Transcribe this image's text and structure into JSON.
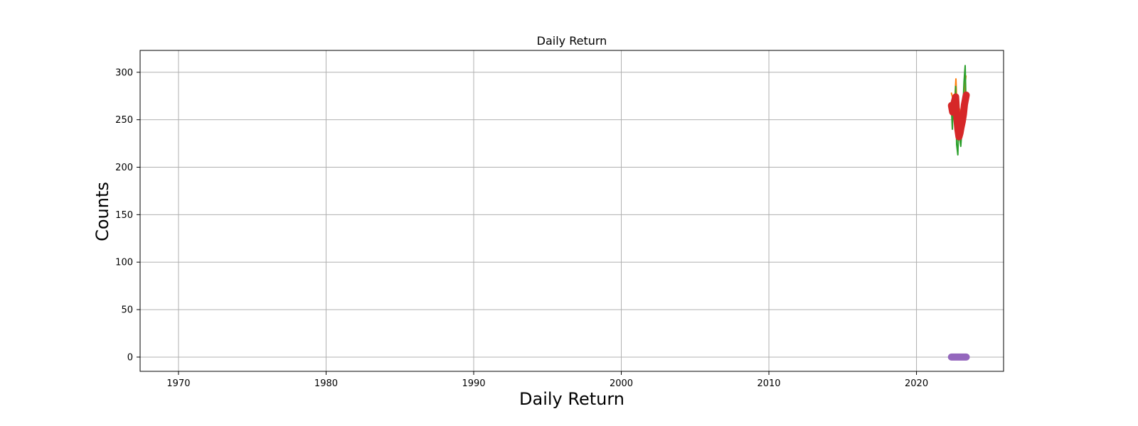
{
  "chart_data": {
    "type": "line",
    "title": "Daily Return",
    "xlabel": "Daily Return",
    "ylabel": "Counts",
    "grid": true,
    "xlim": [
      1967.4,
      2025.9
    ],
    "ylim": [
      -15,
      323
    ],
    "xticks": [
      1970,
      1980,
      1990,
      2000,
      2010,
      2020
    ],
    "yticks": [
      0,
      50,
      100,
      150,
      200,
      250,
      300
    ],
    "colors": {
      "high": "#ff7f0e",
      "low": "#2ca02c",
      "close": "#d62728",
      "volume": "#9467bd",
      "grid": "#b0b0b0"
    },
    "series": [
      {
        "key": "high",
        "style": "line",
        "x": [
          2022.37,
          2022.47,
          2022.57,
          2022.67,
          2022.73,
          2022.8,
          2022.9,
          2023.0,
          2023.1,
          2023.2,
          2023.28,
          2023.35
        ],
        "y": [
          278,
          272,
          264,
          293,
          268,
          258,
          262,
          256,
          252,
          264,
          286,
          296
        ]
      },
      {
        "key": "low",
        "style": "line",
        "x": [
          2022.37,
          2022.43,
          2022.5,
          2022.58,
          2022.65,
          2022.72,
          2022.8,
          2022.86,
          2022.93,
          2023.0,
          2023.08,
          2023.15,
          2023.22,
          2023.3,
          2023.35
        ],
        "y": [
          262,
          240,
          270,
          250,
          285,
          224,
          213,
          248,
          230,
          222,
          240,
          262,
          290,
          307,
          270
        ]
      },
      {
        "key": "close",
        "style": "thick-line",
        "x": [
          2022.37,
          2022.45,
          2022.55,
          2022.65,
          2022.72,
          2022.8,
          2022.88,
          2022.95,
          2023.02,
          2023.1,
          2023.18,
          2023.25,
          2023.32,
          2023.37
        ],
        "y": [
          265,
          258,
          268,
          274,
          255,
          240,
          232,
          236,
          242,
          248,
          256,
          266,
          272,
          276
        ]
      },
      {
        "key": "volume",
        "style": "thick-line",
        "x": [
          2022.37,
          2023.37
        ],
        "y": [
          0,
          0
        ]
      }
    ]
  }
}
